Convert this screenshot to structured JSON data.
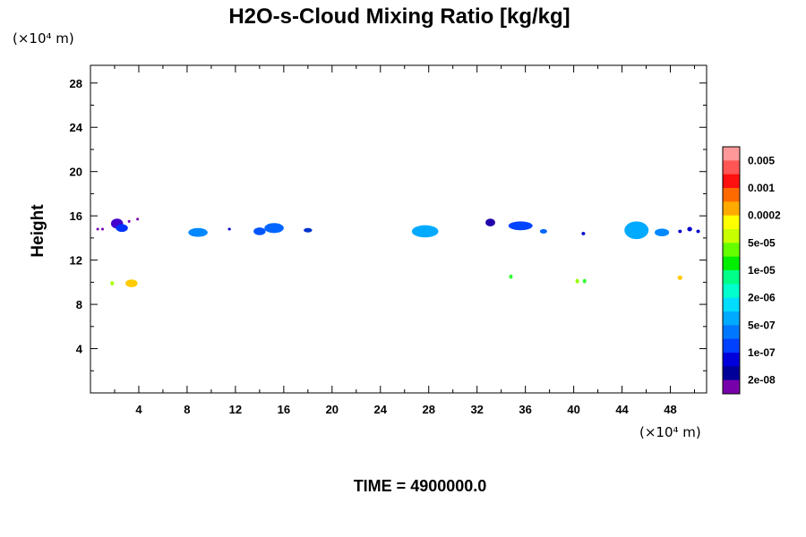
{
  "chart_data": {
    "type": "heatmap",
    "title": "H2O-s-Cloud Mixing Ratio [kg/kg]",
    "ylabel": "Height",
    "x_unit": "(×10⁴ m)",
    "y_unit": "(×10⁴ m)",
    "xlim": [
      0,
      51
    ],
    "ylim": [
      0,
      29.6
    ],
    "x_ticks": [
      4,
      8,
      12,
      16,
      20,
      24,
      28,
      32,
      36,
      40,
      44,
      48
    ],
    "y_ticks": [
      4,
      8,
      12,
      16,
      20,
      24,
      28
    ],
    "colorbar": {
      "labels": [
        "0.005",
        "0.001",
        "0.0002",
        "5e-05",
        "1e-05",
        "2e-06",
        "5e-07",
        "1e-07",
        "2e-08"
      ],
      "colors_top_to_bottom": [
        "#ff9999",
        "#ff5555",
        "#ff1010",
        "#ff6a00",
        "#ffaa00",
        "#ffff00",
        "#c8ff00",
        "#66ff00",
        "#00ee00",
        "#00ff88",
        "#00ffcc",
        "#00ddff",
        "#00aaff",
        "#0077ff",
        "#0040ff",
        "#0000dd",
        "#000099",
        "#7700aa"
      ]
    },
    "features": [
      {
        "x": 2.2,
        "y": 15.3,
        "rx": 0.5,
        "ry": 0.45,
        "color": "#4400cc"
      },
      {
        "x": 2.6,
        "y": 14.9,
        "rx": 0.5,
        "ry": 0.35,
        "color": "#0033ff"
      },
      {
        "x": 0.6,
        "y": 14.8,
        "rx": 0.07,
        "ry": 0.07,
        "color": "#7700aa"
      },
      {
        "x": 1.0,
        "y": 14.8,
        "rx": 0.07,
        "ry": 0.07,
        "color": "#7700aa"
      },
      {
        "x": 3.2,
        "y": 15.5,
        "rx": 0.07,
        "ry": 0.07,
        "color": "#7700aa"
      },
      {
        "x": 3.9,
        "y": 15.7,
        "rx": 0.07,
        "ry": 0.07,
        "color": "#7700aa"
      },
      {
        "x": 8.9,
        "y": 14.5,
        "rx": 0.8,
        "ry": 0.4,
        "color": "#0088ff"
      },
      {
        "x": 11.5,
        "y": 14.8,
        "rx": 0.12,
        "ry": 0.12,
        "color": "#0000cc"
      },
      {
        "x": 14.0,
        "y": 14.6,
        "rx": 0.5,
        "ry": 0.35,
        "color": "#0055ff"
      },
      {
        "x": 15.2,
        "y": 14.9,
        "rx": 0.8,
        "ry": 0.45,
        "color": "#0066ff"
      },
      {
        "x": 18.0,
        "y": 14.7,
        "rx": 0.35,
        "ry": 0.2,
        "color": "#0033cc"
      },
      {
        "x": 27.7,
        "y": 14.6,
        "rx": 1.1,
        "ry": 0.55,
        "color": "#00aaff"
      },
      {
        "x": 33.1,
        "y": 15.4,
        "rx": 0.4,
        "ry": 0.35,
        "color": "#2200aa"
      },
      {
        "x": 35.6,
        "y": 15.1,
        "rx": 1.0,
        "ry": 0.4,
        "color": "#0044ff"
      },
      {
        "x": 37.5,
        "y": 14.6,
        "rx": 0.3,
        "ry": 0.2,
        "color": "#0066ff"
      },
      {
        "x": 40.8,
        "y": 14.4,
        "rx": 0.15,
        "ry": 0.15,
        "color": "#0000cc"
      },
      {
        "x": 45.2,
        "y": 14.7,
        "rx": 1.0,
        "ry": 0.8,
        "color": "#00aaff"
      },
      {
        "x": 47.3,
        "y": 14.5,
        "rx": 0.6,
        "ry": 0.35,
        "color": "#0088ff"
      },
      {
        "x": 48.8,
        "y": 14.6,
        "rx": 0.15,
        "ry": 0.15,
        "color": "#0000cc"
      },
      {
        "x": 49.6,
        "y": 14.8,
        "rx": 0.2,
        "ry": 0.2,
        "color": "#0000cc"
      },
      {
        "x": 50.3,
        "y": 14.6,
        "rx": 0.15,
        "ry": 0.15,
        "color": "#0000cc"
      },
      {
        "x": 1.8,
        "y": 9.9,
        "rx": 0.15,
        "ry": 0.2,
        "color": "#aaff00"
      },
      {
        "x": 3.4,
        "y": 9.9,
        "rx": 0.5,
        "ry": 0.35,
        "color": "#ffcc00"
      },
      {
        "x": 34.8,
        "y": 10.5,
        "rx": 0.15,
        "ry": 0.2,
        "color": "#33ff33"
      },
      {
        "x": 40.3,
        "y": 10.1,
        "rx": 0.15,
        "ry": 0.2,
        "color": "#99ff00"
      },
      {
        "x": 40.9,
        "y": 10.1,
        "rx": 0.15,
        "ry": 0.2,
        "color": "#33ff33"
      },
      {
        "x": 48.8,
        "y": 10.4,
        "rx": 0.2,
        "ry": 0.2,
        "color": "#ffcc00"
      }
    ]
  },
  "footer": {
    "time_label": "TIME = 4900000.0"
  }
}
